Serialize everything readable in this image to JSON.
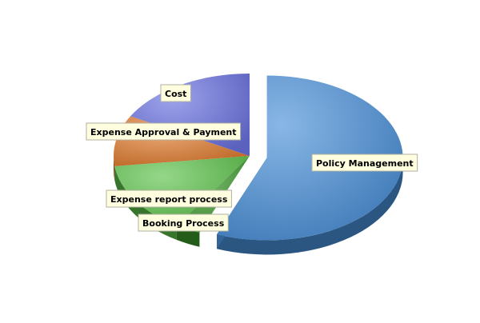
{
  "chart_data": {
    "type": "pie",
    "style": "3d-exploded",
    "legend": "none",
    "slices": [
      {
        "label": "Policy Management",
        "value": 56,
        "color": "#4a90d9",
        "exploded": true
      },
      {
        "label": "Booking Process",
        "value": 3,
        "color": "#3c9a2c",
        "exploded": false
      },
      {
        "label": "Expense report process",
        "value": 14,
        "color": "#5cc24a",
        "exploded": false
      },
      {
        "label": "Expense Approval & Payment",
        "value": 10,
        "color": "#e07b2e",
        "exploded": false
      },
      {
        "label": "Cost",
        "value": 17,
        "color": "#6a72e0",
        "exploded": false
      }
    ]
  }
}
